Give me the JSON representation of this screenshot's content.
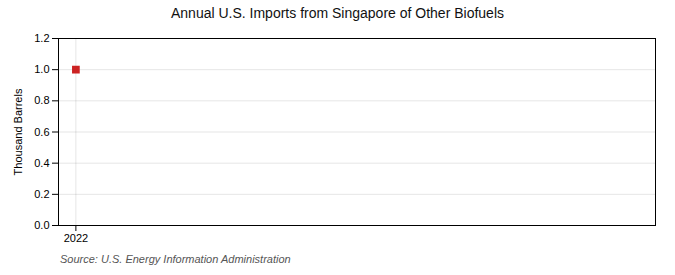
{
  "chart_data": {
    "type": "scatter",
    "title": "Annual U.S. Imports from Singapore of Other Biofuels",
    "ylabel": "Thousand Barrels",
    "source": "Source: U.S. Energy Information Administration",
    "x": [
      2022
    ],
    "values": [
      1.0
    ],
    "color": "#cc2222",
    "marker": "square",
    "xlim": [
      2021.7,
      2032
    ],
    "xticks": [
      2022
    ],
    "ylim": [
      0.0,
      1.2
    ],
    "yticks": [
      {
        "value": 0.0,
        "label": "0.0"
      },
      0.2,
      0.4,
      0.6,
      0.8,
      {
        "value": 1.0,
        "label": "1.0"
      },
      1.2
    ],
    "grid": true
  }
}
